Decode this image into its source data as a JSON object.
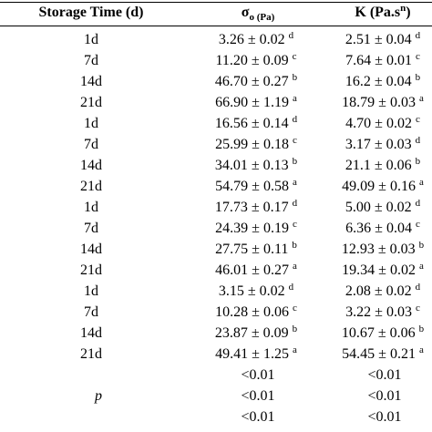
{
  "table": {
    "header": {
      "storage_time": "Storage Time (d)",
      "sigma": "σ",
      "sigma_sub": "o (Pa)",
      "k": "K (Pa.s",
      "k_sup": "n",
      "k_close": ")"
    },
    "rows": [
      [
        "1d",
        "3.26 ± 0.02",
        "d",
        "2.51 ± 0.04",
        "d"
      ],
      [
        "7d",
        "11.20 ± 0.09",
        "c",
        "7.64 ± 0.01",
        "c"
      ],
      [
        "14d",
        "46.70 ± 0.27",
        "b",
        "16.2 ± 0.04",
        "b"
      ],
      [
        "21d",
        "66.90 ± 1.19",
        "a",
        "18.79 ± 0.03",
        "a"
      ],
      [
        "1d",
        "16.56 ± 0.14",
        "d",
        "4.70 ± 0.02",
        "c"
      ],
      [
        "7d",
        "25.99 ± 0.18",
        "c",
        "3.17 ± 0.03",
        "d"
      ],
      [
        "14d",
        "34.01 ± 0.13",
        "b",
        "21.1 ± 0.06",
        "b"
      ],
      [
        "21d",
        "54.79 ± 0.58",
        "a",
        "49.09 ± 0.16",
        "a"
      ],
      [
        "1d",
        "17.73 ± 0.17",
        "d",
        "5.00 ± 0.02",
        "d"
      ],
      [
        "7d",
        "24.39 ± 0.19",
        "c",
        "6.36 ± 0.04",
        "c"
      ],
      [
        "14d",
        "27.75 ± 0.11",
        "b",
        "12.93 ± 0.03",
        "b"
      ],
      [
        "21d",
        "46.01 ± 0.27",
        "a",
        "19.34 ± 0.02",
        "a"
      ],
      [
        "1d",
        "3.15 ± 0.02",
        "d",
        "2.08 ± 0.02",
        "d"
      ],
      [
        "7d",
        "10.28 ± 0.06",
        "c",
        "3.22 ± 0.03",
        "c"
      ],
      [
        "14d",
        "23.87 ± 0.09",
        "b",
        "10.67 ± 0.06",
        "b"
      ],
      [
        "21d",
        "49.41 ± 1.25",
        "a",
        "54.45 ± 0.21",
        "a"
      ]
    ],
    "p_label": "p",
    "p_rows": [
      [
        "<0.01",
        "<0.01"
      ],
      [
        "<0.01",
        "<0.01"
      ],
      [
        "<0.01",
        "<0.01"
      ]
    ]
  }
}
